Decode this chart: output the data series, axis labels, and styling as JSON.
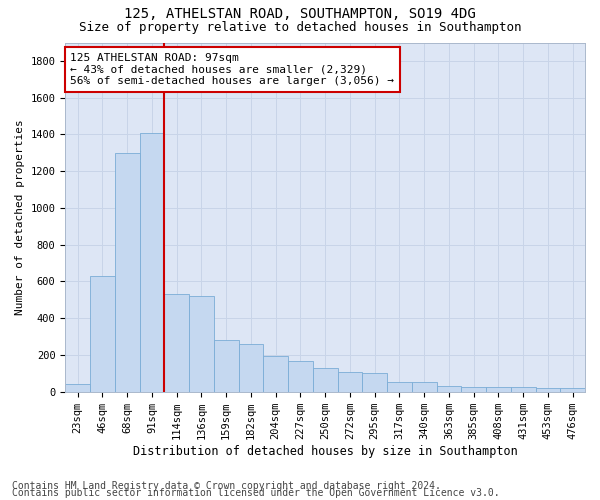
{
  "title": "125, ATHELSTAN ROAD, SOUTHAMPTON, SO19 4DG",
  "subtitle": "Size of property relative to detached houses in Southampton",
  "xlabel": "Distribution of detached houses by size in Southampton",
  "ylabel": "Number of detached properties",
  "categories": [
    "23sqm",
    "46sqm",
    "68sqm",
    "91sqm",
    "114sqm",
    "136sqm",
    "159sqm",
    "182sqm",
    "204sqm",
    "227sqm",
    "250sqm",
    "272sqm",
    "295sqm",
    "317sqm",
    "340sqm",
    "363sqm",
    "385sqm",
    "408sqm",
    "431sqm",
    "453sqm",
    "476sqm"
  ],
  "values": [
    40,
    630,
    1300,
    1410,
    530,
    520,
    280,
    260,
    195,
    165,
    130,
    105,
    100,
    55,
    55,
    30,
    25,
    25,
    25,
    20,
    20
  ],
  "bar_color": "#c5d8f0",
  "bar_edge_color": "#7aacd6",
  "vline_color": "#cc0000",
  "annotation_text": "125 ATHELSTAN ROAD: 97sqm\n← 43% of detached houses are smaller (2,329)\n56% of semi-detached houses are larger (3,056) →",
  "annotation_box_color": "#ffffff",
  "annotation_box_edge": "#cc0000",
  "ylim": [
    0,
    1900
  ],
  "yticks": [
    0,
    200,
    400,
    600,
    800,
    1000,
    1200,
    1400,
    1600,
    1800
  ],
  "grid_color": "#c8d4e8",
  "background_color": "#dde6f5",
  "footer1": "Contains HM Land Registry data © Crown copyright and database right 2024.",
  "footer2": "Contains public sector information licensed under the Open Government Licence v3.0.",
  "title_fontsize": 10,
  "subtitle_fontsize": 9,
  "xlabel_fontsize": 8.5,
  "ylabel_fontsize": 8,
  "tick_fontsize": 7.5,
  "footer_fontsize": 7,
  "annotation_fontsize": 8
}
